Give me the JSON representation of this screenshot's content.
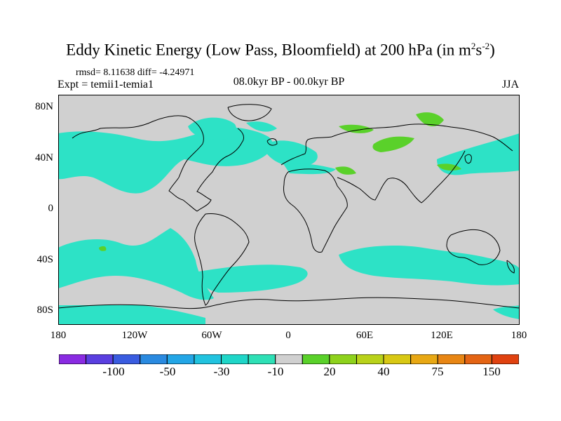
{
  "header": {
    "title": "Eddy Kinetic Energy (Low Pass, Bloomfield) at 200 hPa (in m",
    "title_sup1": "2",
    "title_mid": "s",
    "title_sup2": "-2",
    "title_end": ")",
    "stats": "rmsd= 8.11638 diff= -4.24971",
    "expt": "Expt = temii1-temia1",
    "period": "08.0kyr BP - 00.0kyr BP",
    "season": "JJA"
  },
  "map_data": {
    "projection": "cylindrical-equidistant",
    "lon_range": [
      -180,
      180
    ],
    "lat_range": [
      -90,
      90
    ],
    "background_color": "#d0d0d0",
    "coastline_color": "#000000",
    "y_tick_labels": [
      "80N",
      "40N",
      "0",
      "40S",
      "80S"
    ],
    "x_tick_labels": [
      "180",
      "120W",
      "60W",
      "0",
      "60E",
      "120E",
      "180"
    ]
  },
  "colorbar": {
    "colors": [
      "#8a2be2",
      "#5a3fe0",
      "#3a5ce0",
      "#2a8ae0",
      "#23a6e6",
      "#21c3df",
      "#1fd6c8",
      "#2ee0b6",
      "#d0d0d0",
      "#5ad12a",
      "#8ed21c",
      "#b9d21a",
      "#d8c814",
      "#e8a814",
      "#e88614",
      "#e46414",
      "#e04210"
    ],
    "labels": [
      "-100",
      "-50",
      "-30",
      "-10",
      "20",
      "40",
      "75",
      "150"
    ]
  }
}
